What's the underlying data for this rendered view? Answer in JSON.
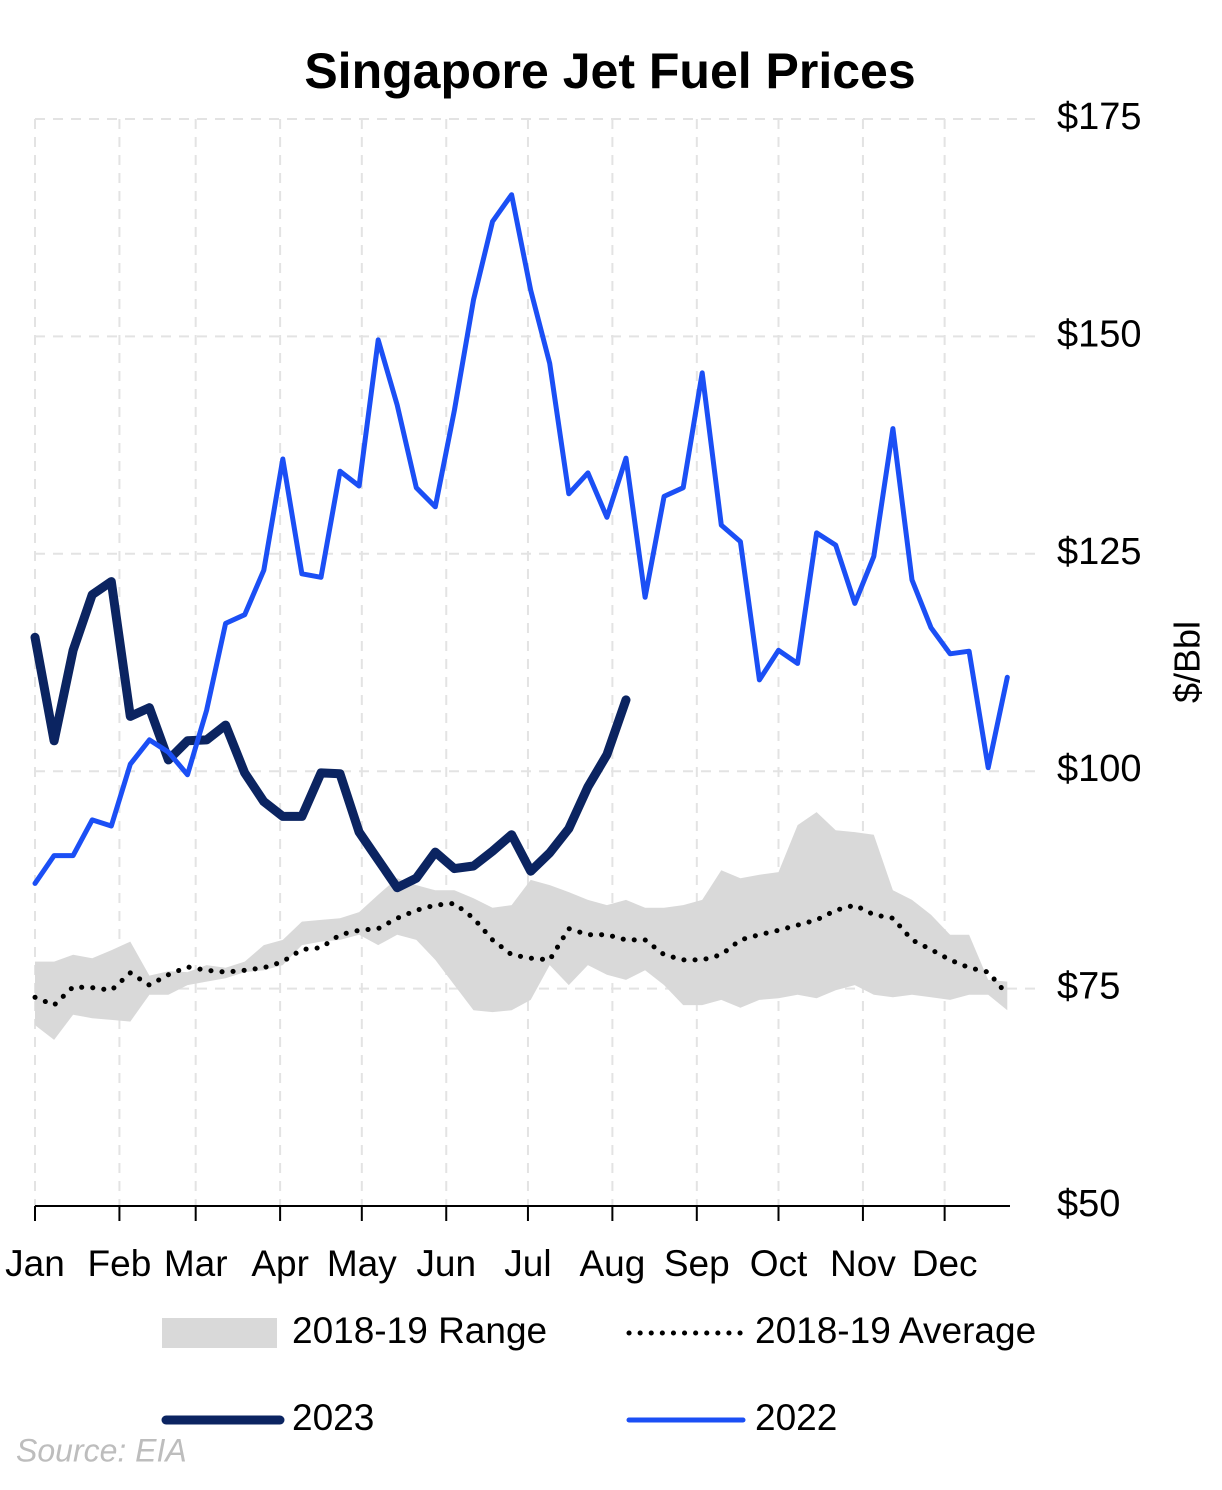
{
  "chart_data": {
    "type": "line",
    "title": "Singapore Jet Fuel Prices",
    "y_axis_label": "$/Bbl",
    "source": "Source: EIA",
    "x": [
      0,
      7,
      14,
      21,
      28,
      35,
      42,
      49,
      56,
      63,
      70,
      77,
      84,
      91,
      98,
      105,
      112,
      119,
      126,
      133,
      140,
      147,
      154,
      161,
      168,
      175,
      182,
      189,
      196,
      203,
      210,
      217,
      224,
      231,
      238,
      245,
      252,
      259,
      266,
      273,
      280,
      287,
      294,
      301,
      308,
      315,
      322,
      329,
      336,
      343,
      350,
      357
    ],
    "xlim": [
      0,
      358
    ],
    "xticks": [
      {
        "value": 0,
        "label": "Jan"
      },
      {
        "value": 31,
        "label": "Feb"
      },
      {
        "value": 59,
        "label": "Mar"
      },
      {
        "value": 90,
        "label": "Apr"
      },
      {
        "value": 120,
        "label": "May"
      },
      {
        "value": 151,
        "label": "Jun"
      },
      {
        "value": 181,
        "label": "Jul"
      },
      {
        "value": 212,
        "label": "Aug"
      },
      {
        "value": 243,
        "label": "Sep"
      },
      {
        "value": 273,
        "label": "Oct"
      },
      {
        "value": 304,
        "label": "Nov"
      },
      {
        "value": 334,
        "label": "Dec"
      }
    ],
    "ylim": [
      50,
      175
    ],
    "yticks": [
      {
        "value": 50,
        "label": "$50"
      },
      {
        "value": 75,
        "label": "$75"
      },
      {
        "value": 100,
        "label": "$100"
      },
      {
        "value": 125,
        "label": "$125"
      },
      {
        "value": 150,
        "label": "$150"
      },
      {
        "value": 175,
        "label": "$175"
      }
    ],
    "grid": true,
    "legend": "bottom",
    "series": [
      {
        "name": "2018-19 Range",
        "color": "#d9d9d9",
        "style": "band",
        "high": [
          78.1,
          78.1,
          78.9,
          78.5,
          79.4,
          80.4,
          76.5,
          77.0,
          76.9,
          77.7,
          77.4,
          78.1,
          80.0,
          80.6,
          82.7,
          82.9,
          83.1,
          83.8,
          85.8,
          87.7,
          86.9,
          86.3,
          86.3,
          85.4,
          84.3,
          84.6,
          87.5,
          86.9,
          86.1,
          85.2,
          84.6,
          85.2,
          84.3,
          84.3,
          84.6,
          85.2,
          88.6,
          87.7,
          88.1,
          88.4,
          93.8,
          95.3,
          93.2,
          93.0,
          92.7,
          86.3,
          85.2,
          83.5,
          81.2,
          81.2,
          76.0,
          75.8
        ],
        "low": [
          70.8,
          69.1,
          72.0,
          71.6,
          71.4,
          71.2,
          74.3,
          74.3,
          75.4,
          75.8,
          76.2,
          76.9,
          77.1,
          77.7,
          80.0,
          80.4,
          80.6,
          81.2,
          80.0,
          81.2,
          80.6,
          78.3,
          75.4,
          72.5,
          72.3,
          72.5,
          73.7,
          77.7,
          75.4,
          77.7,
          76.6,
          76.0,
          77.1,
          75.4,
          73.1,
          73.1,
          73.7,
          72.8,
          73.7,
          73.9,
          74.3,
          73.9,
          74.8,
          75.4,
          74.3,
          74.0,
          74.3,
          74.0,
          73.7,
          74.3,
          74.3,
          72.5
        ]
      },
      {
        "name": "2018-19 Average",
        "color": "#000000",
        "style": "dotted",
        "values": [
          74.0,
          73.1,
          75.2,
          75.1,
          74.8,
          76.8,
          75.4,
          76.6,
          77.5,
          77.1,
          76.9,
          77.1,
          77.4,
          78.1,
          79.5,
          79.7,
          81.2,
          81.7,
          81.9,
          83.1,
          84.0,
          84.6,
          84.8,
          83.1,
          80.6,
          78.9,
          78.5,
          78.3,
          81.9,
          81.2,
          81.2,
          80.6,
          80.6,
          78.9,
          78.3,
          78.3,
          78.9,
          80.6,
          81.2,
          81.7,
          82.3,
          82.9,
          84.0,
          84.6,
          83.5,
          83.1,
          80.6,
          79.5,
          78.3,
          77.4,
          76.9,
          74.3
        ]
      },
      {
        "name": "2023",
        "color": "#0b2461",
        "style": "bold",
        "values": [
          115.4,
          103.5,
          113.9,
          120.3,
          121.8,
          106.3,
          107.3,
          101.3,
          103.5,
          103.6,
          105.3,
          99.8,
          96.5,
          94.8,
          94.8,
          99.8,
          99.7,
          93.0,
          89.8,
          86.6,
          87.7,
          90.7,
          88.8,
          89.1,
          90.8,
          92.7,
          88.5,
          90.6,
          93.4,
          98.2,
          101.9,
          108.2,
          null,
          null,
          null,
          null,
          null,
          null,
          null,
          null,
          null,
          null,
          null,
          null,
          null,
          null,
          null,
          null,
          null,
          null,
          null,
          null
        ]
      },
      {
        "name": "2022",
        "color": "#1b4ff5",
        "style": "solid",
        "values": [
          87.1,
          90.3,
          90.3,
          94.4,
          93.7,
          100.8,
          103.6,
          102.2,
          99.6,
          107.0,
          117.0,
          118.0,
          123.1,
          135.9,
          122.7,
          122.3,
          134.5,
          132.8,
          149.6,
          142.1,
          132.6,
          130.4,
          141.5,
          154.2,
          163.2,
          166.3,
          155.3,
          146.9,
          131.9,
          134.3,
          129.2,
          136.0,
          120.0,
          131.6,
          132.6,
          145.8,
          128.3,
          126.4,
          110.5,
          113.9,
          112.4,
          127.4,
          126.0,
          119.3,
          124.7,
          139.4,
          122.0,
          116.5,
          113.5,
          113.8,
          100.4,
          110.8
        ]
      }
    ]
  }
}
